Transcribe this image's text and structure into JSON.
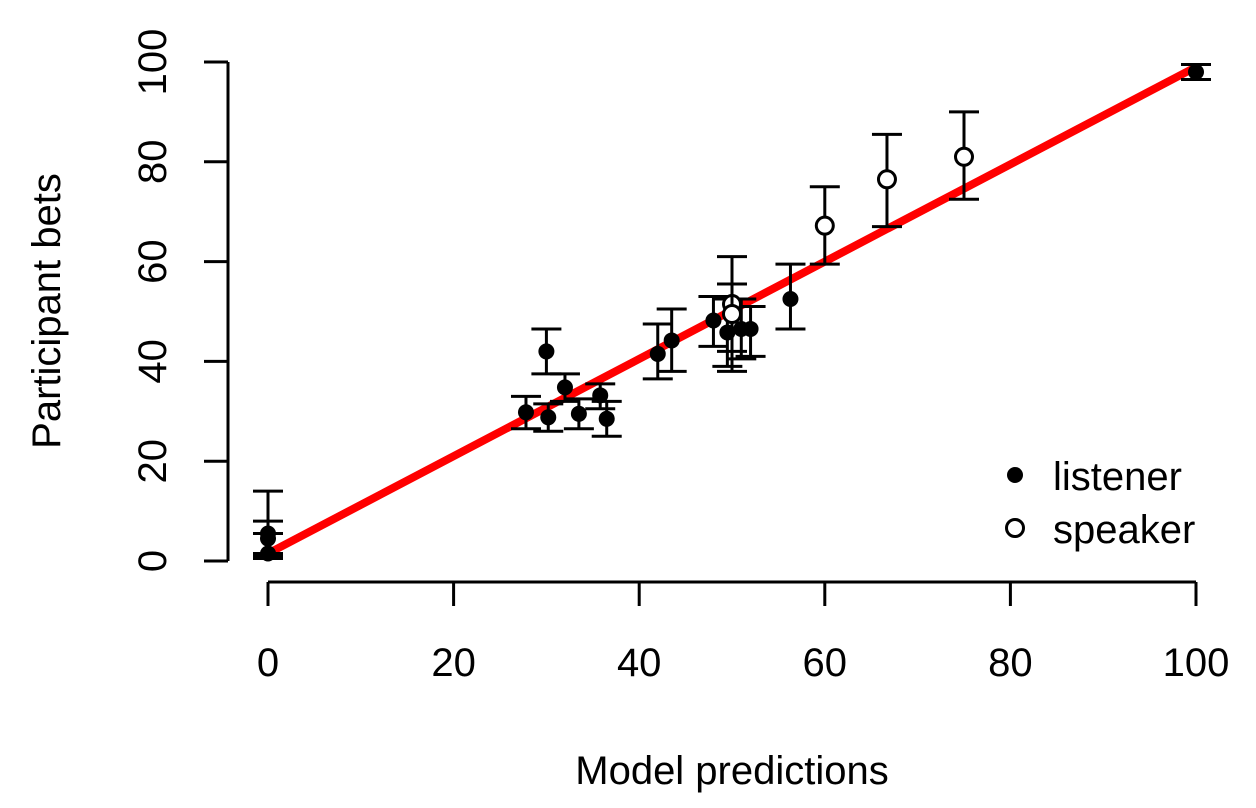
{
  "chart_data": {
    "type": "scatter",
    "title": "",
    "xlabel": "Model predictions",
    "ylabel": "Participant bets",
    "xlim": [
      0,
      100
    ],
    "ylim": [
      0,
      100
    ],
    "x_ticks": [
      "0",
      "20",
      "40",
      "60",
      "80",
      "100"
    ],
    "y_ticks": [
      "0",
      "20",
      "40",
      "60",
      "80",
      "100"
    ],
    "grid": false,
    "legend_position": "bottom-right",
    "fit_line": {
      "color": "#ff0000",
      "x": [
        0,
        100
      ],
      "y": [
        1.5,
        99
      ]
    },
    "series": [
      {
        "name": "listener",
        "marker": "filled-circle",
        "points": [
          {
            "x": 0,
            "y": 5.5,
            "lo": 1.5,
            "hi": 14
          },
          {
            "x": 0,
            "y": 4.5,
            "lo": 1,
            "hi": 8
          },
          {
            "x": 0,
            "y": 1.5,
            "lo": 0.5,
            "hi": 5.5
          },
          {
            "x": 27.8,
            "y": 29.8,
            "lo": 26.5,
            "hi": 33
          },
          {
            "x": 30,
            "y": 42,
            "lo": 37.5,
            "hi": 46.5
          },
          {
            "x": 30.2,
            "y": 28.8,
            "lo": 26,
            "hi": 31.5
          },
          {
            "x": 32,
            "y": 34.8,
            "lo": 32,
            "hi": 37.5
          },
          {
            "x": 33.5,
            "y": 29.5,
            "lo": 26.5,
            "hi": 32.5
          },
          {
            "x": 35.8,
            "y": 33.2,
            "lo": 30.5,
            "hi": 35.5
          },
          {
            "x": 36.5,
            "y": 28.5,
            "lo": 25,
            "hi": 32
          },
          {
            "x": 42,
            "y": 41.5,
            "lo": 36.5,
            "hi": 47.5
          },
          {
            "x": 43.5,
            "y": 44.2,
            "lo": 38,
            "hi": 50.5
          },
          {
            "x": 48,
            "y": 48.2,
            "lo": 43,
            "hi": 53
          },
          {
            "x": 49.5,
            "y": 45.8,
            "lo": 39,
            "hi": 52.5
          },
          {
            "x": 51,
            "y": 46.5,
            "lo": 40.5,
            "hi": 52.5
          },
          {
            "x": 52,
            "y": 46.5,
            "lo": 41,
            "hi": 51
          },
          {
            "x": 56.3,
            "y": 52.5,
            "lo": 46.5,
            "hi": 59.5
          },
          {
            "x": 100,
            "y": 98,
            "lo": 96.5,
            "hi": 99.5
          }
        ]
      },
      {
        "name": "speaker",
        "marker": "open-circle",
        "points": [
          {
            "x": 50,
            "y": 51.5,
            "lo": 38,
            "hi": 61
          },
          {
            "x": 50,
            "y": 49.5,
            "lo": 42,
            "hi": 55.5
          },
          {
            "x": 60,
            "y": 67.2,
            "lo": 59.5,
            "hi": 75
          },
          {
            "x": 66.7,
            "y": 76.5,
            "lo": 67,
            "hi": 85.5
          },
          {
            "x": 75,
            "y": 81,
            "lo": 72.5,
            "hi": 90
          }
        ]
      }
    ]
  }
}
